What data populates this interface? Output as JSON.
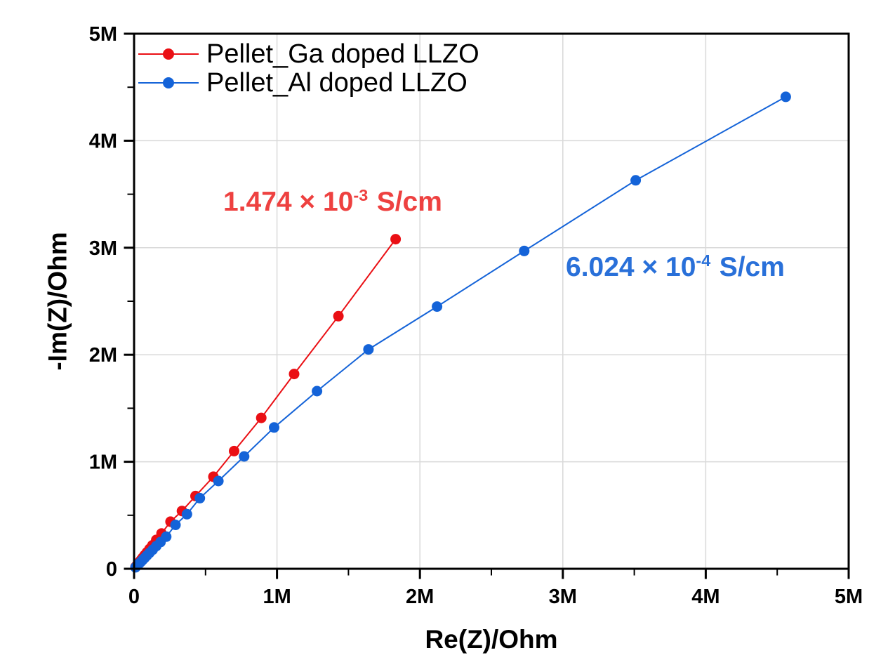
{
  "figure": {
    "background": "#ffffff"
  },
  "chart_data": {
    "type": "scatter",
    "title": "",
    "xlabel": "Re(Z)/Ohm",
    "ylabel": "-Im(Z)/Ohm",
    "xlim_ohm": [
      0,
      5000000
    ],
    "ylim_ohm": [
      0,
      5000000
    ],
    "x_tick_labels": [
      "0",
      "1M",
      "2M",
      "3M",
      "4M",
      "5M"
    ],
    "y_tick_labels": [
      "0",
      "1M",
      "2M",
      "3M",
      "4M",
      "5M"
    ],
    "minor_tick_interval_ohm": 500000,
    "grid": true,
    "grid_color": "#d9d9d9",
    "frame_color": "#000000",
    "legend_position": "top-left-inside",
    "point_unit": "megaohm",
    "series": [
      {
        "id": "ga",
        "name": "Pellet_Ga doped LLZO",
        "color": "#ea0f14",
        "marker": "circle",
        "points_megaohm": [
          [
            0.01,
            0.017
          ],
          [
            0.018,
            0.031
          ],
          [
            0.027,
            0.046
          ],
          [
            0.037,
            0.063
          ],
          [
            0.048,
            0.082
          ],
          [
            0.06,
            0.103
          ],
          [
            0.074,
            0.127
          ],
          [
            0.09,
            0.154
          ],
          [
            0.108,
            0.185
          ],
          [
            0.128,
            0.219
          ],
          [
            0.155,
            0.27
          ],
          [
            0.192,
            0.33
          ],
          [
            0.255,
            0.44
          ],
          [
            0.335,
            0.54
          ],
          [
            0.43,
            0.68
          ],
          [
            0.555,
            0.86
          ],
          [
            0.7,
            1.1
          ],
          [
            0.89,
            1.41
          ],
          [
            1.12,
            1.82
          ],
          [
            1.43,
            2.36
          ],
          [
            1.83,
            3.08
          ]
        ]
      },
      {
        "id": "al",
        "name": "Pellet_Al doped LLZO",
        "color": "#1463d8",
        "marker": "circle",
        "points_megaohm": [
          [
            0.01,
            0.014
          ],
          [
            0.018,
            0.025
          ],
          [
            0.027,
            0.037
          ],
          [
            0.037,
            0.051
          ],
          [
            0.048,
            0.066
          ],
          [
            0.06,
            0.083
          ],
          [
            0.074,
            0.102
          ],
          [
            0.09,
            0.124
          ],
          [
            0.108,
            0.149
          ],
          [
            0.13,
            0.178
          ],
          [
            0.155,
            0.212
          ],
          [
            0.185,
            0.25
          ],
          [
            0.225,
            0.3
          ],
          [
            0.29,
            0.41
          ],
          [
            0.37,
            0.51
          ],
          [
            0.46,
            0.66
          ],
          [
            0.59,
            0.82
          ],
          [
            0.77,
            1.05
          ],
          [
            0.98,
            1.32
          ],
          [
            1.28,
            1.66
          ],
          [
            1.64,
            2.05
          ],
          [
            2.12,
            2.45
          ],
          [
            2.73,
            2.97
          ],
          [
            3.51,
            3.63
          ],
          [
            4.56,
            4.41
          ]
        ]
      }
    ],
    "annotations": [
      {
        "text": "1.474 × 10⁻³ S/cm",
        "base": "1.474 × 10",
        "exponent": "-3",
        "unit": "S/cm",
        "color": "#ee4140",
        "refers_to": "Pellet_Ga doped LLZO"
      },
      {
        "text": "6.024 × 10⁻⁴ S/cm",
        "base": "6.024 × 10",
        "exponent": "-4",
        "unit": "S/cm",
        "color": "#2970d9",
        "refers_to": "Pellet_Al doped LLZO"
      }
    ]
  }
}
